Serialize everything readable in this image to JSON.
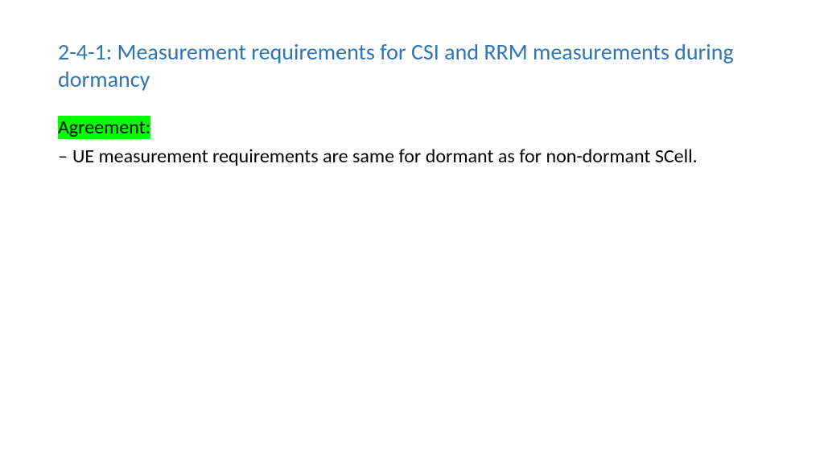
{
  "title": {
    "text": "2-4-1: Measurement requirements for CSI and RRM measurements during dormancy",
    "color": "#2e75b6",
    "fontsize": 28
  },
  "agreement": {
    "label": "Agreement:",
    "highlight_bg": "#00ff00",
    "text_color": "#000000",
    "fontsize": 24
  },
  "body": {
    "dash": "–",
    "text": "UE measurement requirements are same for dormant as for non-dormant SCell.",
    "text_color": "#000000",
    "fontsize": 24
  }
}
